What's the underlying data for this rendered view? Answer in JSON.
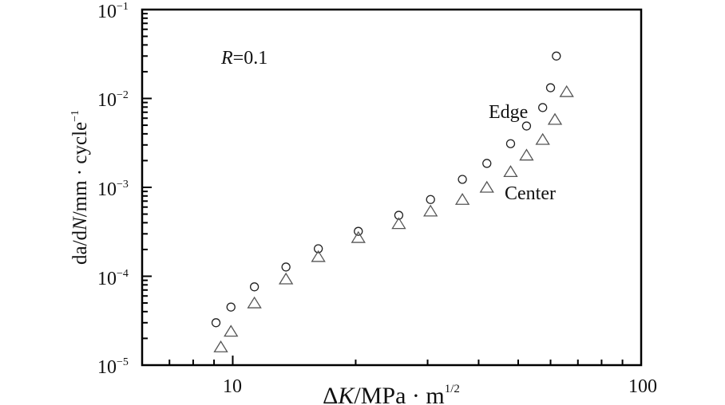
{
  "chart_data": {
    "type": "scatter",
    "xlabel": {
      "delta": "Δ",
      "var": "K",
      "unit": "/MPa · m",
      "sup": "1/2"
    },
    "ylabel": {
      "a": "da/d",
      "n": "N",
      "rest": "/mm · cycle",
      "sup": "−1"
    },
    "x_scale": "log",
    "y_scale": "log",
    "xlim": [
      6,
      100
    ],
    "ylim": [
      1e-05,
      0.1
    ],
    "x_ticks": [
      {
        "value": 10,
        "label": "10"
      },
      {
        "value": 100,
        "label": "100"
      }
    ],
    "y_ticks": [
      {
        "value": 0.1,
        "base": "10",
        "exp": "−1"
      },
      {
        "value": 0.01,
        "base": "10",
        "exp": "−2"
      },
      {
        "value": 0.001,
        "base": "10",
        "exp": "−3"
      },
      {
        "value": 0.0001,
        "base": "10",
        "exp": "−4"
      },
      {
        "value": 1e-05,
        "base": "10",
        "exp": "−5"
      }
    ],
    "grid": false,
    "annotation": {
      "var": "R",
      "rest": "=0.1"
    },
    "series": [
      {
        "name": "Edge",
        "marker": "circle",
        "color": "#222222",
        "x": [
          9.1,
          9.9,
          11.3,
          13.5,
          16.2,
          20.3,
          25.5,
          30.5,
          36.5,
          41.9,
          47.9,
          52.4,
          57.4,
          60.0,
          62.0
        ],
        "y": [
          3e-05,
          4.5e-05,
          7.6e-05,
          0.000127,
          0.000204,
          0.00032,
          0.000485,
          0.00073,
          0.00123,
          0.00186,
          0.0031,
          0.0049,
          0.0079,
          0.0132,
          0.03
        ]
      },
      {
        "name": "Center",
        "marker": "triangle",
        "color": "#555555",
        "x": [
          9.35,
          9.9,
          11.3,
          13.5,
          16.2,
          20.3,
          25.5,
          30.5,
          36.5,
          41.9,
          47.9,
          52.4,
          57.4,
          61.5,
          65.7
        ],
        "y": [
          1.6e-05,
          2.4e-05,
          5e-05,
          9.3e-05,
          0.000166,
          0.000272,
          0.00039,
          0.00054,
          0.00073,
          0.001,
          0.0015,
          0.0023,
          0.00345,
          0.0058,
          0.0119
        ]
      }
    ]
  }
}
